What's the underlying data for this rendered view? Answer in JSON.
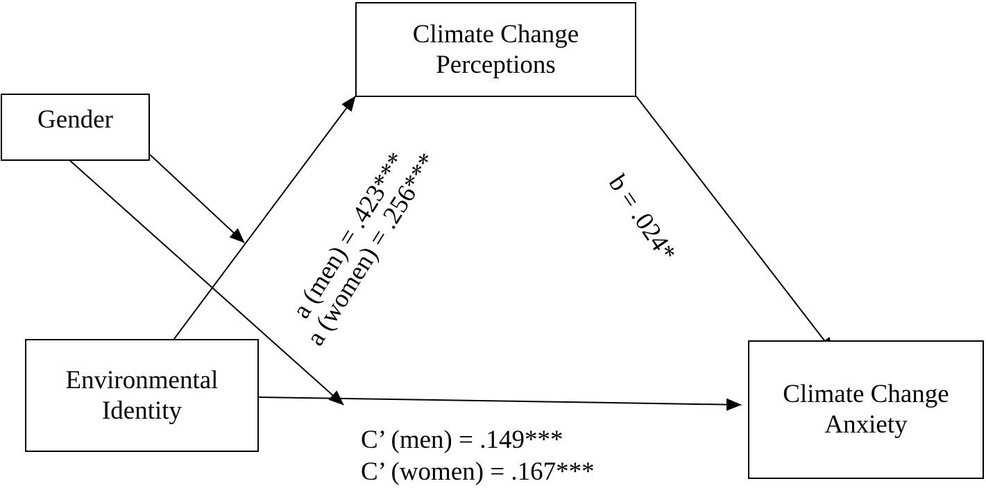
{
  "nodes": {
    "perceptions": {
      "line1": "Climate Change",
      "line2": "Perceptions"
    },
    "gender": {
      "label": "Gender"
    },
    "identity": {
      "line1": "Environmental",
      "line2": "Identity"
    },
    "anxiety": {
      "line1": "Climate Change",
      "line2": "Anxiety"
    }
  },
  "paths": {
    "a_men": "a (men) = .423***",
    "a_women": "a (women) = .256***",
    "b": "b = .024*",
    "c_men": "C’ (men) = .149***",
    "c_women": "C’ (women) = .167***"
  },
  "colors": {
    "line": "#000000",
    "background": "#ffffff"
  }
}
